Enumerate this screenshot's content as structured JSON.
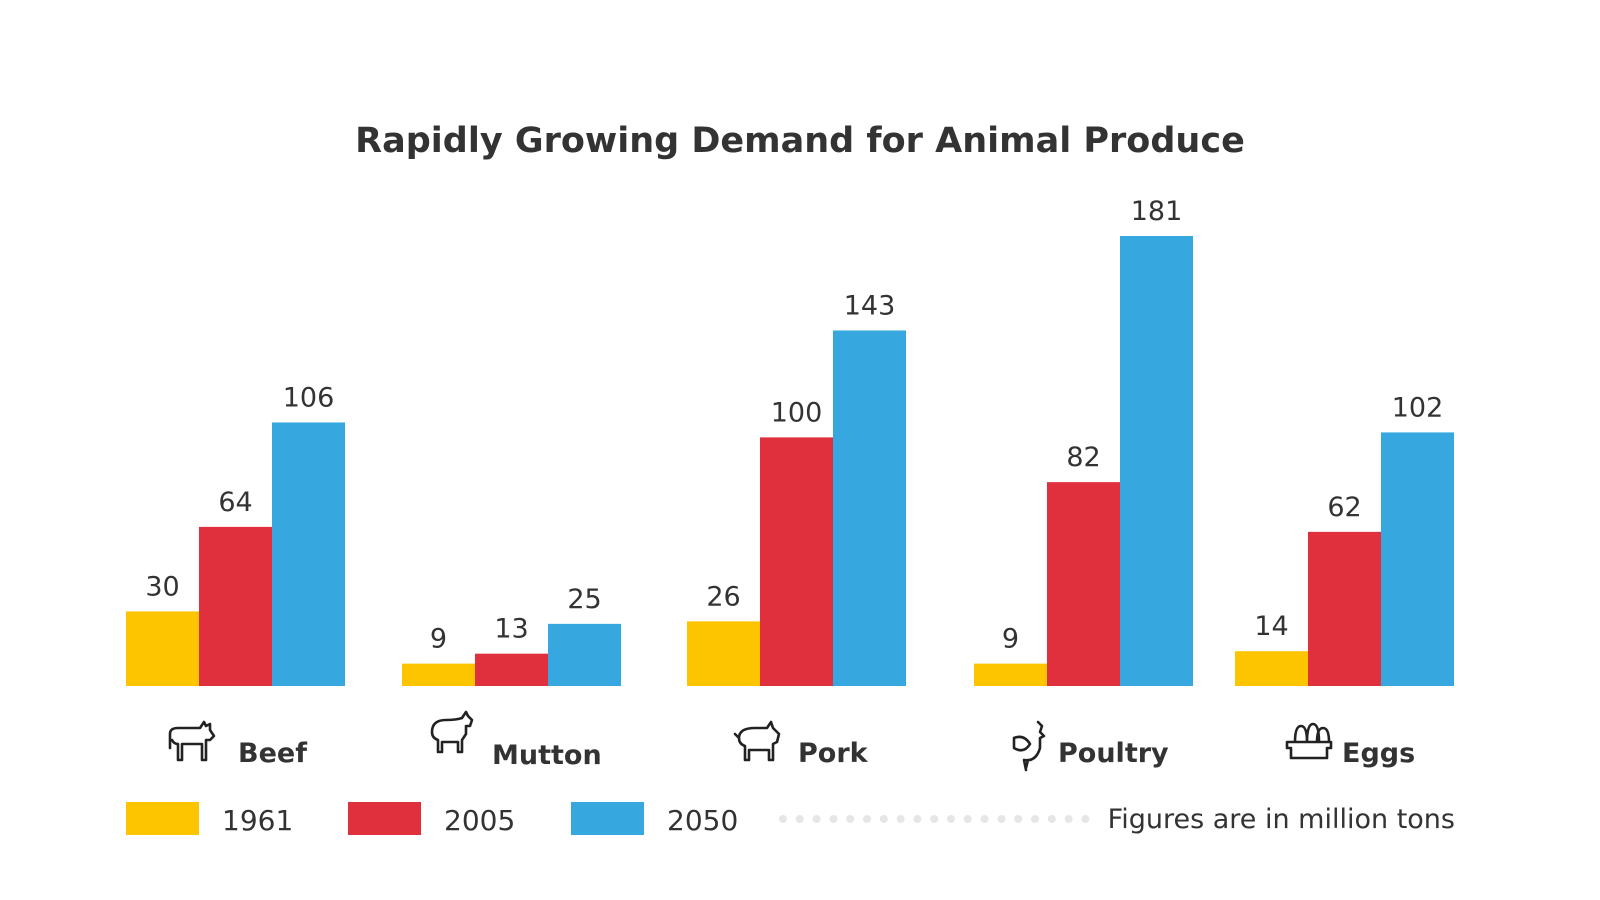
{
  "chart_data": {
    "type": "bar",
    "title": "Rapidly Growing Demand for Animal Produce",
    "categories": [
      "Beef",
      "Mutton",
      "Pork",
      "Poultry",
      "Eggs"
    ],
    "category_icons": [
      "cow-icon",
      "sheep-icon",
      "pig-icon",
      "chicken-icon",
      "egg-carton-icon"
    ],
    "series": [
      {
        "name": "1961",
        "color": "#FDC500",
        "values": [
          30,
          9,
          26,
          9,
          14
        ]
      },
      {
        "name": "2005",
        "color": "#E0303E",
        "values": [
          64,
          13,
          100,
          82,
          62
        ]
      },
      {
        "name": "2050",
        "color": "#36A8DF",
        "values": [
          106,
          25,
          143,
          181,
          102
        ]
      }
    ],
    "ylim": [
      0,
      181
    ],
    "grid": false,
    "legend_position": "bottom",
    "note": "Figures are in million tons"
  }
}
